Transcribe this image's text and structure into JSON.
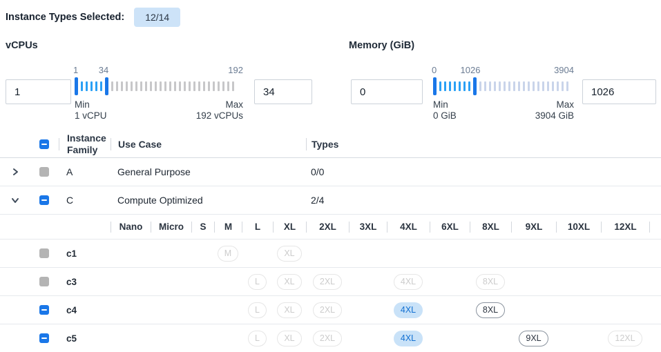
{
  "colors": {
    "accent_blue": "#1a77e8",
    "selected_tick": "#2aa0f5",
    "vcpus_unselected_tick": "#c7c7c9",
    "memory_unselected_tick": "#c9d4ea",
    "badge_bg": "#cde3f8",
    "pill_selected_bg": "#c9e2f8",
    "pill_selected_text": "#1270d2",
    "disabled_checkbox_gray": "#b4b4b4"
  },
  "header": {
    "label": "Instance Types Selected:",
    "badge": "12/14"
  },
  "filters": {
    "vcpus": {
      "title": "vCPUs",
      "min_value": "1",
      "max_value": "34",
      "scale_start": "1",
      "scale_handle": "34",
      "scale_end": "192",
      "min_label": "Min",
      "min_caption": "1 vCPU",
      "max_label": "Max",
      "max_caption": "192 vCPUs",
      "selected_ticks": 5,
      "unselected_ticks": 26
    },
    "memory": {
      "title": "Memory (GiB)",
      "min_value": "0",
      "max_value": "1026",
      "scale_start": "0",
      "scale_handle": "1026",
      "scale_end": "3904",
      "min_label": "Min",
      "min_caption": "0 GiB",
      "max_label": "Max",
      "max_caption": "3904 GiB",
      "selected_ticks": 7,
      "unselected_ticks": 19
    }
  },
  "table": {
    "columns": {
      "family": "Instance Family",
      "use_case": "Use Case",
      "types": "Types"
    },
    "header_checkbox": "indeterminate",
    "family_rows": [
      {
        "name": "A",
        "use_case": "General Purpose",
        "types": "0/0",
        "expanded": false,
        "checkbox": "disabled"
      },
      {
        "name": "C",
        "use_case": "Compute Optimized",
        "types": "2/4",
        "expanded": true,
        "checkbox": "indeterminate"
      }
    ],
    "sizes": [
      "Nano",
      "Micro",
      "S",
      "M",
      "L",
      "XL",
      "2XL",
      "3XL",
      "4XL",
      "6XL",
      "8XL",
      "9XL",
      "10XL",
      "12XL"
    ],
    "instance_rows": [
      {
        "name": "c1",
        "checkbox": "disabled",
        "pills": {
          "M": "disabled",
          "XL": "disabled"
        }
      },
      {
        "name": "c3",
        "checkbox": "disabled",
        "pills": {
          "L": "disabled",
          "XL": "disabled",
          "2XL": "disabled",
          "4XL": "disabled",
          "8XL": "disabled"
        }
      },
      {
        "name": "c4",
        "checkbox": "indeterminate",
        "pills": {
          "L": "disabled",
          "XL": "disabled",
          "2XL": "disabled",
          "4XL": "selected",
          "8XL": "enabled"
        }
      },
      {
        "name": "c5",
        "checkbox": "indeterminate",
        "pills": {
          "L": "disabled",
          "XL": "disabled",
          "2XL": "disabled",
          "4XL": "selected",
          "9XL": "enabled",
          "12XL": "disabled"
        }
      }
    ]
  }
}
